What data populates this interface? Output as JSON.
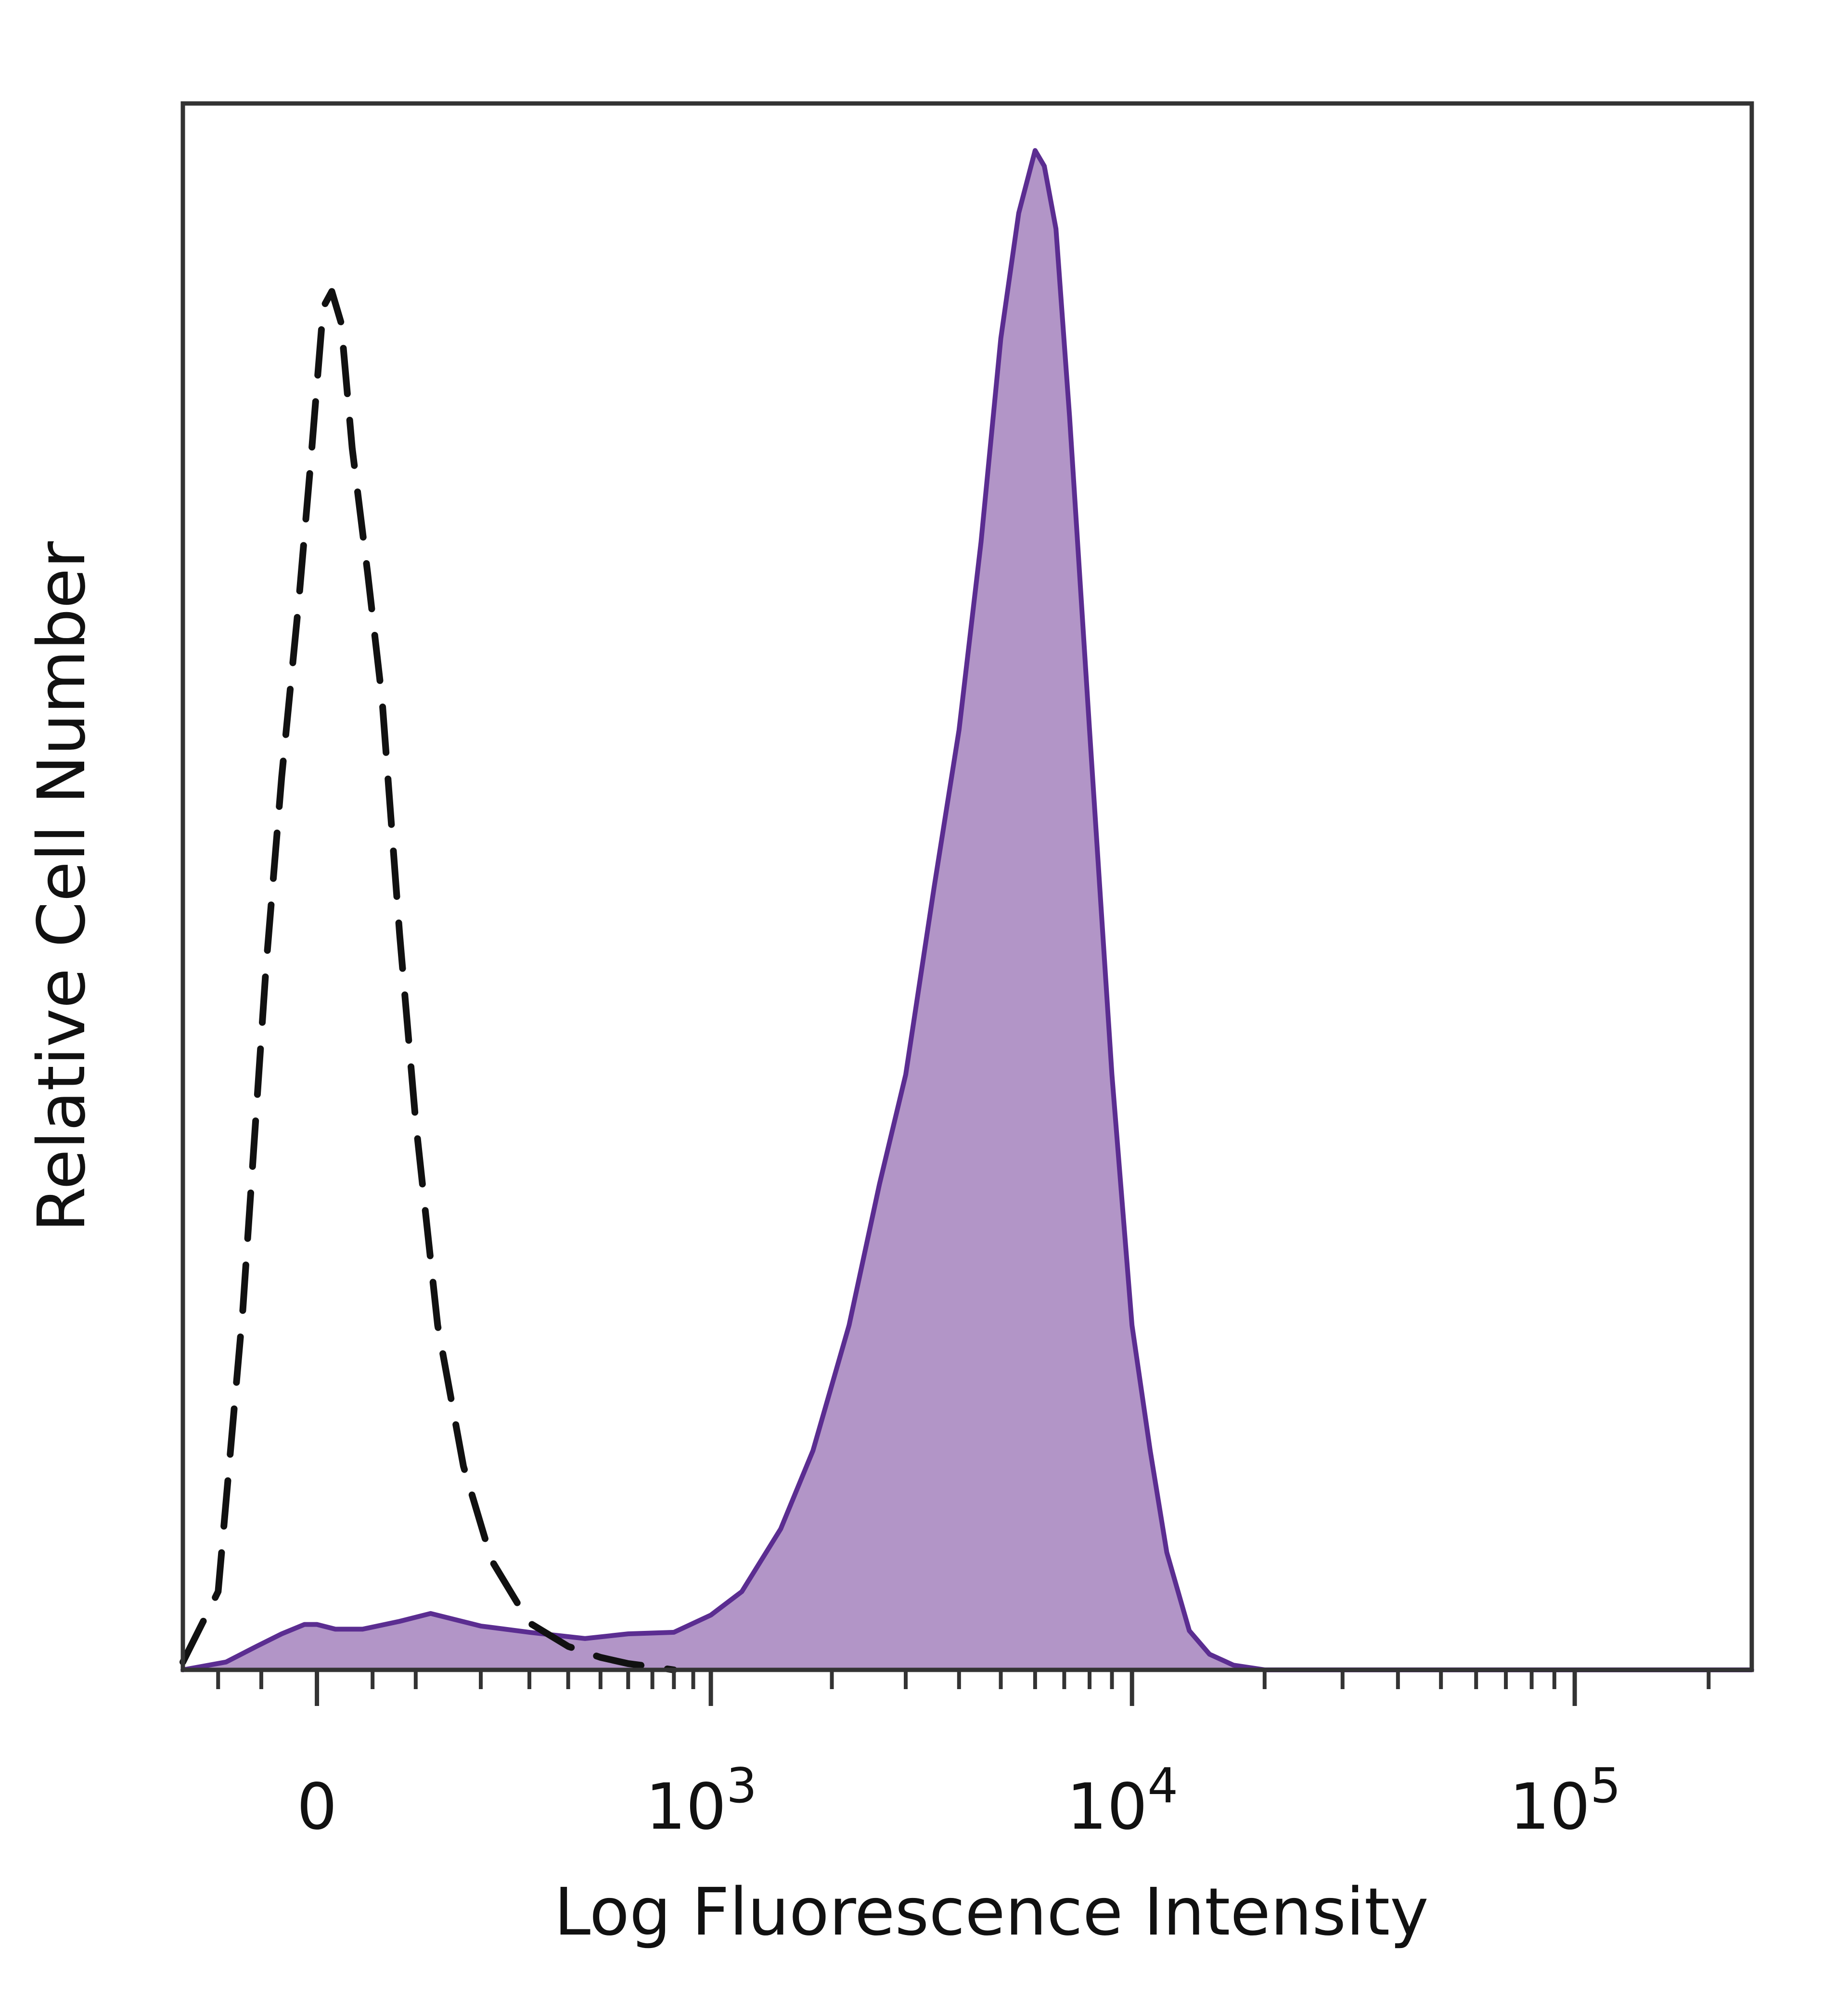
{
  "chart_data": {
    "type": "area",
    "title": "",
    "xlabel": "Log Fluorescence Intensity",
    "ylabel": "Relative Cell Number",
    "x_scale": "biexponential",
    "xlim": [
      -150,
      250000
    ],
    "ylim": [
      0,
      100
    ],
    "grid": false,
    "legend": "none",
    "x_ticks": [
      {
        "value": 0,
        "base": "0",
        "exp": ""
      },
      {
        "value": 1000,
        "base": "10",
        "exp": "3"
      },
      {
        "value": 10000,
        "base": "10",
        "exp": "4"
      },
      {
        "value": 100000,
        "base": "10",
        "exp": "5"
      }
    ],
    "series": [
      {
        "style": "dashed",
        "color": "#111111",
        "fill": "none",
        "x": [
          -150,
          -100,
          -70,
          -45,
          -30,
          -15,
          -5,
          0,
          5,
          12,
          20,
          30,
          45,
          60,
          80,
          100,
          130,
          170,
          220,
          300,
          400,
          500,
          600,
          700,
          800
        ],
        "y": [
          0.5,
          5,
          23,
          45,
          57,
          68,
          77,
          82,
          87,
          88,
          86,
          78,
          70,
          62,
          47,
          35,
          22,
          13,
          7,
          3,
          1.5,
          0.8,
          0.4,
          0.2,
          0
        ]
      },
      {
        "style": "solid",
        "color": "#5b2d91",
        "fill": "#b295c7",
        "x": [
          -150,
          -90,
          -55,
          -30,
          -10,
          0,
          15,
          40,
          80,
          120,
          200,
          300,
          450,
          600,
          800,
          1000,
          1200,
          1500,
          1800,
          2200,
          2600,
          3000,
          3500,
          4000,
          4500,
          5000,
          5500,
          6000,
          6300,
          6700,
          7200,
          8000,
          9000,
          10000,
          11000,
          12000,
          13500,
          15000,
          17000,
          20000,
          40000,
          100000,
          250000
        ],
        "y": [
          0,
          0.5,
          1.5,
          2.3,
          2.9,
          2.9,
          2.6,
          2.6,
          3.1,
          3.6,
          2.8,
          2.4,
          2.0,
          2.3,
          2.4,
          3.5,
          5.0,
          9.0,
          14,
          22,
          31,
          38,
          50,
          60,
          72,
          85,
          93,
          97,
          96,
          92,
          80,
          60,
          38,
          22,
          14,
          7.5,
          2.5,
          1.0,
          0.3,
          0,
          0,
          0,
          0
        ]
      }
    ]
  }
}
